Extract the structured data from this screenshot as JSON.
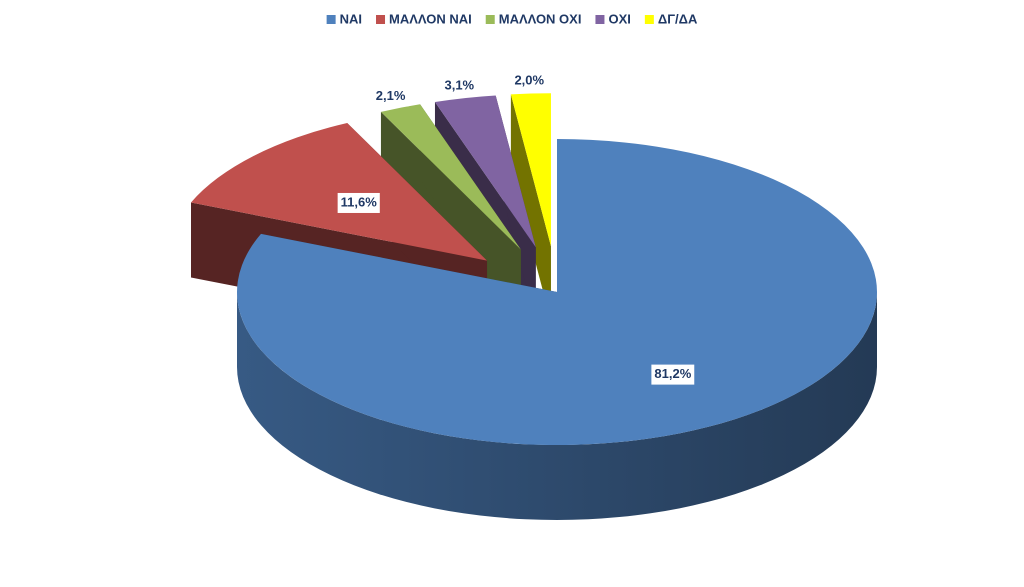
{
  "chart_data": {
    "type": "pie3d",
    "categories": [
      "ΝΑΙ",
      "ΜΑΛΛΟΝ ΝΑΙ",
      "ΜΑΛΛΟΝ ΟΧΙ",
      "ΟΧΙ",
      "ΔΓ/ΔΑ"
    ],
    "values": [
      81.2,
      11.6,
      2.1,
      3.1,
      2.0
    ],
    "value_labels": [
      "81,2%",
      "11,6%",
      "2,1%",
      "3,1%",
      "2,0%"
    ],
    "colors": [
      "#4f81bd",
      "#c0504d",
      "#9bbb59",
      "#8064a2",
      "#ffff00"
    ],
    "legend": "top"
  }
}
